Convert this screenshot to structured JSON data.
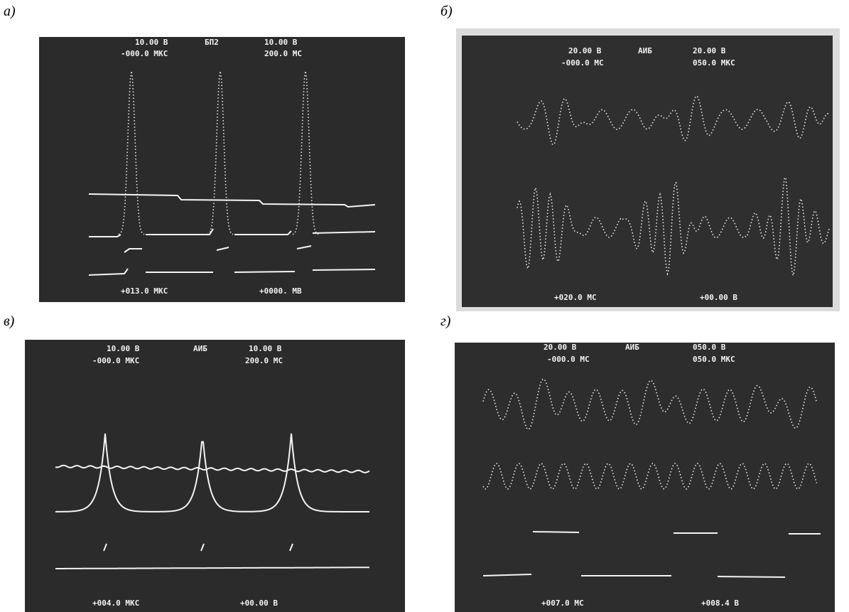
{
  "panels": [
    {
      "label": "а)",
      "readouts": [
        "10.00 В",
        "БП2",
        "10.00 В",
        "-000.0 МКС",
        "200.0 МС",
        "+013.0 МКС",
        "+0000. МВ"
      ]
    },
    {
      "label": "б)",
      "readouts": [
        "20.00 В",
        "АИБ",
        "20.00 В",
        "-000.0 МС",
        "050.0 МКС",
        "+020.0 МС",
        "+00.00 В"
      ]
    },
    {
      "label": "в)",
      "readouts": [
        "10.00 В",
        "АИБ",
        "10.00 В",
        "-000.0 МКС",
        "200.0 МС",
        "+004.0 МКС",
        "+00.00 В"
      ]
    },
    {
      "label": "г)",
      "readouts": [
        "20.00 В",
        "АИБ",
        "050.0 В",
        "-000.0 МС",
        "050.0 МКС",
        "+007.0 МС",
        "+008.4 В"
      ]
    }
  ]
}
